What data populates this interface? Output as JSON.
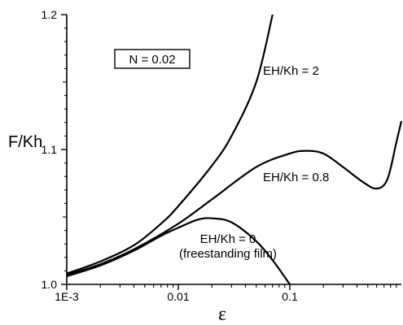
{
  "chart_data": {
    "type": "line",
    "xscale": "log",
    "xlim": [
      0.001,
      1.0
    ],
    "ylim": [
      1.0,
      1.2
    ],
    "xlabel": "ε",
    "ylabel": "F/Kh",
    "x_ticks": [
      {
        "value": 0.001,
        "label": "1E-3"
      },
      {
        "value": 0.01,
        "label": "0.01"
      },
      {
        "value": 0.1,
        "label": "0.1"
      }
    ],
    "y_ticks": [
      {
        "value": 1.0,
        "label": "1.0"
      },
      {
        "value": 1.1,
        "label": "1.1"
      },
      {
        "value": 1.2,
        "label": "1.2"
      }
    ],
    "parameter_box": "N = 0.02",
    "series": [
      {
        "name": "EH/Kh = 2",
        "x": [
          0.001,
          0.002,
          0.004,
          0.007,
          0.01,
          0.02,
          0.03,
          0.05,
          0.07
        ],
        "y": [
          1.008,
          1.017,
          1.029,
          1.045,
          1.058,
          1.088,
          1.11,
          1.15,
          1.2
        ]
      },
      {
        "name": "EH/Kh = 0.8",
        "x": [
          0.001,
          0.002,
          0.004,
          0.01,
          0.02,
          0.05,
          0.1,
          0.14,
          0.2,
          0.3,
          0.45,
          0.6,
          0.75,
          0.9,
          1.0
        ],
        "y": [
          1.007,
          1.015,
          1.026,
          1.045,
          1.063,
          1.087,
          1.097,
          1.099,
          1.097,
          1.087,
          1.076,
          1.071,
          1.078,
          1.105,
          1.121
        ]
      },
      {
        "name": "EH/Kh = 0\n(freestanding film)",
        "x": [
          0.001,
          0.002,
          0.004,
          0.007,
          0.01,
          0.015,
          0.02,
          0.03,
          0.05,
          0.07,
          0.1
        ],
        "y": [
          1.006,
          1.014,
          1.025,
          1.036,
          1.042,
          1.048,
          1.049,
          1.046,
          1.032,
          1.018,
          1.0
        ]
      }
    ]
  }
}
